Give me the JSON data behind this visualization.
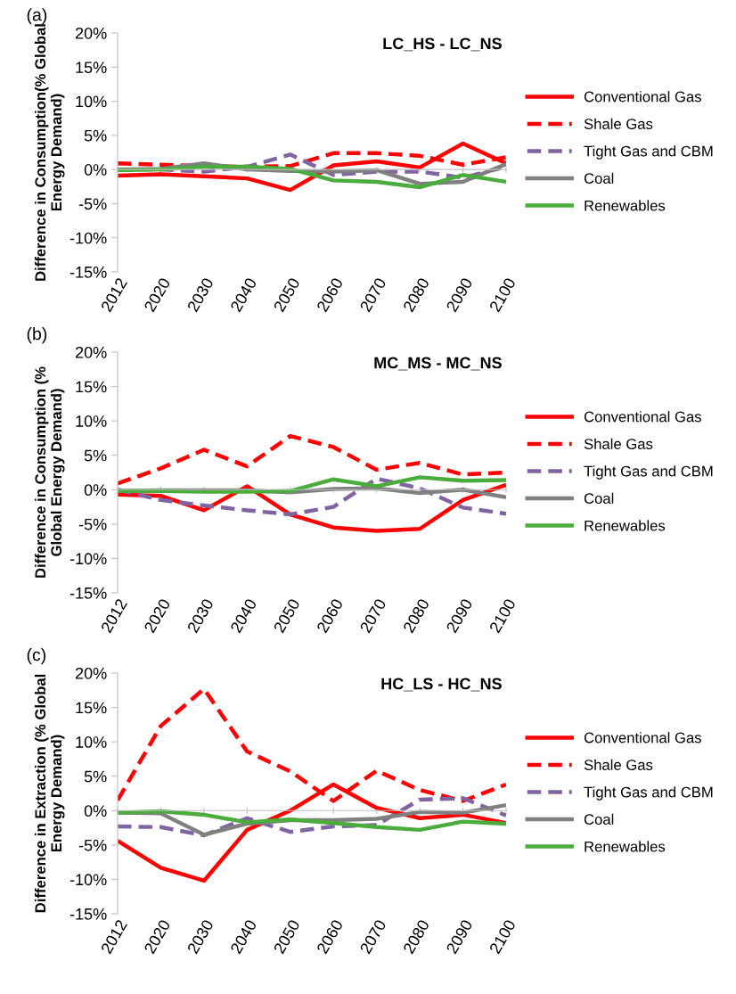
{
  "chart_data": [
    {
      "type": "line",
      "title": "LC_HS - LC_NS",
      "ylabel": "Difference in Consumption(% Global\nEnergy Demand)",
      "annotations": [
        "(a)"
      ],
      "legend": "right",
      "marker": "none",
      "categories": [
        "2012",
        "2020",
        "2030",
        "2040",
        "2050",
        "2060",
        "2070",
        "2080",
        "2090",
        "2100"
      ],
      "ylim": [
        -15,
        20
      ],
      "yticks": [
        {
          "value": -15,
          "label": "-15%"
        },
        {
          "value": -10,
          "label": "-10%"
        },
        {
          "value": -5,
          "label": "-5%"
        },
        {
          "value": 0,
          "label": "0%"
        },
        {
          "value": 5,
          "label": "5%"
        },
        {
          "value": 10,
          "label": "10%"
        },
        {
          "value": 15,
          "label": "15%"
        },
        {
          "value": 20,
          "label": "20%"
        }
      ],
      "series": [
        {
          "name": "Conventional Gas",
          "color": "#ff0000",
          "line_style": "solid",
          "values": [
            -0.9,
            -0.7,
            -1.0,
            -1.3,
            -3.0,
            0.6,
            1.2,
            0.3,
            3.8,
            0.9
          ]
        },
        {
          "name": "Shale Gas",
          "color": "#ff0000",
          "line_style": "dashed",
          "values": [
            0.9,
            0.7,
            0.5,
            0.4,
            0.5,
            2.4,
            2.4,
            2.0,
            0.7,
            1.8
          ]
        },
        {
          "name": "Tight Gas and CBM",
          "color": "#8064a2",
          "line_style": "dashed",
          "values": [
            0.0,
            0.0,
            -0.3,
            0.4,
            2.2,
            -0.8,
            -0.3,
            -0.3,
            -1.2,
            0.4
          ]
        },
        {
          "name": "Coal",
          "color": "#808080",
          "line_style": "solid",
          "values": [
            0.0,
            0.1,
            0.9,
            0.0,
            -0.2,
            -0.3,
            -0.1,
            -2.1,
            -1.8,
            0.8
          ]
        },
        {
          "name": "Renewables",
          "color": "#4aac3c",
          "line_style": "solid",
          "values": [
            -0.1,
            0.0,
            0.4,
            0.4,
            0.1,
            -1.6,
            -1.8,
            -2.6,
            -0.8,
            -1.8
          ]
        }
      ]
    },
    {
      "type": "line",
      "title": "MC_MS - MC_NS",
      "ylabel": "Difference in Consumption (%\nGlobal Energy Demand)",
      "annotations": [
        "(b)"
      ],
      "legend": "right",
      "marker": "none",
      "categories": [
        "2012",
        "2020",
        "2030",
        "2040",
        "2050",
        "2060",
        "2070",
        "2080",
        "2090",
        "2100"
      ],
      "ylim": [
        -15,
        20
      ],
      "yticks": [
        {
          "value": -15,
          "label": "-15%"
        },
        {
          "value": -10,
          "label": "-10%"
        },
        {
          "value": -5,
          "label": "-5%"
        },
        {
          "value": 0,
          "label": "0%"
        },
        {
          "value": 5,
          "label": "5%"
        },
        {
          "value": 10,
          "label": "10%"
        },
        {
          "value": 15,
          "label": "15%"
        },
        {
          "value": 20,
          "label": "20%"
        }
      ],
      "series": [
        {
          "name": "Conventional Gas",
          "color": "#ff0000",
          "line_style": "solid",
          "values": [
            -0.7,
            -0.9,
            -3.0,
            0.5,
            -3.6,
            -5.5,
            -6.0,
            -5.7,
            -1.5,
            0.7
          ]
        },
        {
          "name": "Shale Gas",
          "color": "#ff0000",
          "line_style": "dashed",
          "values": [
            0.9,
            3.1,
            5.8,
            3.4,
            7.8,
            6.2,
            2.9,
            3.9,
            2.2,
            2.5
          ]
        },
        {
          "name": "Tight Gas and CBM",
          "color": "#8064a2",
          "line_style": "dashed",
          "values": [
            0.0,
            -1.5,
            -2.3,
            -3.0,
            -3.6,
            -2.5,
            1.6,
            0.2,
            -2.6,
            -3.5
          ]
        },
        {
          "name": "Coal",
          "color": "#808080",
          "line_style": "solid",
          "values": [
            -0.2,
            -0.1,
            -0.1,
            -0.1,
            -0.4,
            0.1,
            0.2,
            -0.5,
            0.0,
            -1.1
          ]
        },
        {
          "name": "Renewables",
          "color": "#4aac3c",
          "line_style": "solid",
          "values": [
            -0.2,
            -0.2,
            -0.3,
            -0.3,
            -0.2,
            1.5,
            0.5,
            1.8,
            1.3,
            1.4
          ]
        }
      ]
    },
    {
      "type": "line",
      "title": "HC_LS - HC_NS",
      "ylabel": "Difference in Extraction (% Global\nEnergy Demand)",
      "annotations": [
        "(c)"
      ],
      "legend": "right",
      "marker": "none",
      "categories": [
        "2012",
        "2020",
        "2030",
        "2040",
        "2050",
        "2060",
        "2070",
        "2080",
        "2090",
        "2100"
      ],
      "ylim": [
        -15,
        20
      ],
      "yticks": [
        {
          "value": -15,
          "label": "-15%"
        },
        {
          "value": -10,
          "label": "-10%"
        },
        {
          "value": -5,
          "label": "-5%"
        },
        {
          "value": 0,
          "label": "0%"
        },
        {
          "value": 5,
          "label": "5%"
        },
        {
          "value": 10,
          "label": "10%"
        },
        {
          "value": 15,
          "label": "15%"
        },
        {
          "value": 20,
          "label": "20%"
        }
      ],
      "series": [
        {
          "name": "Conventional Gas",
          "color": "#ff0000",
          "line_style": "solid",
          "values": [
            -4.4,
            -8.3,
            -10.2,
            -2.8,
            0.0,
            3.8,
            0.4,
            -1.1,
            -0.6,
            -1.8
          ]
        },
        {
          "name": "Shale Gas",
          "color": "#ff0000",
          "line_style": "dashed",
          "values": [
            1.5,
            12.3,
            17.7,
            8.6,
            5.7,
            1.4,
            5.8,
            3.0,
            1.4,
            3.8
          ]
        },
        {
          "name": "Tight Gas and CBM",
          "color": "#8064a2",
          "line_style": "dashed",
          "values": [
            -2.3,
            -2.4,
            -3.6,
            -1.1,
            -3.1,
            -2.3,
            -2.1,
            1.6,
            1.8,
            -0.7
          ]
        },
        {
          "name": "Coal",
          "color": "#808080",
          "line_style": "solid",
          "values": [
            -0.3,
            -0.4,
            -3.5,
            -1.9,
            -1.4,
            -1.4,
            -1.2,
            -0.2,
            -0.3,
            0.8
          ]
        },
        {
          "name": "Renewables",
          "color": "#4aac3c",
          "line_style": "solid",
          "values": [
            -0.3,
            -0.1,
            -0.6,
            -1.7,
            -1.3,
            -1.8,
            -2.4,
            -2.8,
            -1.6,
            -1.9
          ]
        }
      ]
    }
  ]
}
